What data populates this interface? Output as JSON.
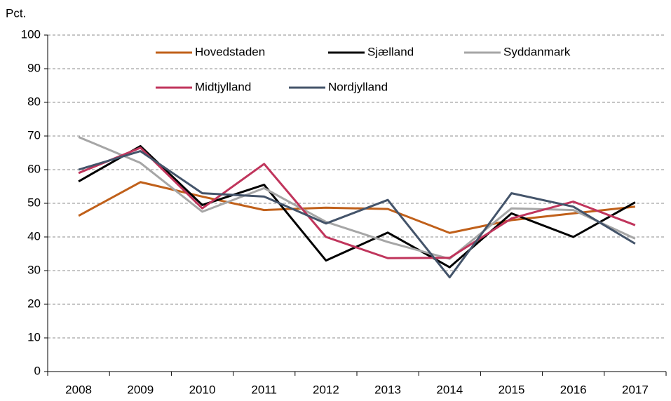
{
  "chart_data": {
    "type": "line",
    "y_label": "Pct.",
    "categories": [
      "2008",
      "2009",
      "2010",
      "2011",
      "2012",
      "2013",
      "2014",
      "2015",
      "2016",
      "2017"
    ],
    "series": [
      {
        "name": "Hovedstaden",
        "color": "#c0601a",
        "values": [
          46.3,
          56.3,
          52,
          48,
          48.7,
          48.3,
          41.2,
          45,
          47,
          49
        ]
      },
      {
        "name": "Sjælland",
        "color": "#000000",
        "values": [
          56.5,
          67,
          49.5,
          55.5,
          33,
          41.3,
          31,
          47,
          40,
          50.3
        ]
      },
      {
        "name": "Syddanmark",
        "color": "#a6a6a6",
        "values": [
          69.7,
          62,
          47.5,
          54.5,
          44.5,
          38.5,
          33.5,
          48.5,
          48,
          39.5
        ]
      },
      {
        "name": "Midtjylland",
        "color": "#c0355c",
        "values": [
          59,
          66.5,
          48.5,
          61.7,
          40,
          33.7,
          33.8,
          45.5,
          50.5,
          43.5
        ]
      },
      {
        "name": "Nordjylland",
        "color": "#44546a",
        "values": [
          60,
          65.5,
          53,
          52,
          44,
          51,
          28,
          53,
          49,
          38
        ]
      }
    ],
    "ylim": [
      0,
      100
    ],
    "yticks": [
      0,
      10,
      20,
      30,
      40,
      50,
      60,
      70,
      80,
      90,
      100
    ],
    "grid": true,
    "legend": "top"
  }
}
